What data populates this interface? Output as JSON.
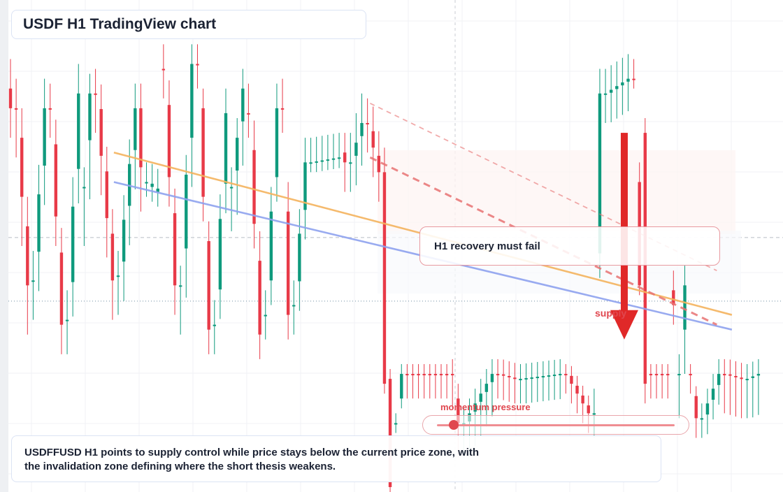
{
  "header": {
    "title": "USDF H1 TradingView chart"
  },
  "annotations": {
    "note": "H1 recovery must fail",
    "supply_label": "supply",
    "momentum_label": "momentum pressure",
    "momentum_level": 0.07
  },
  "caption": {
    "line1": "USDFFUSD H1 points to supply control while price stays below the current price zone, with",
    "line2": "the invalidation zone defining where the short thesis weakens."
  },
  "colors": {
    "up": "#0f9a7d",
    "down": "#e83a48",
    "trend_orange": "#f4b35e",
    "trend_blue": "#8ea2ef",
    "resistance_dashed": "#e87373",
    "arrow": "#e02828"
  },
  "chart_data": {
    "type": "candlestick",
    "interval": "H1",
    "y_direction": "price_down",
    "grid": true,
    "levels": {
      "current_price": 0.612,
      "support": 0.79
    },
    "segments": [
      {
        "dir": "down",
        "count": 1,
        "start": 0.18,
        "end": 0.22,
        "wick_above": 0.06,
        "wick_below": 0.06
      },
      {
        "dir": "down",
        "count": 3,
        "start": 0.22,
        "end": 0.58,
        "wick_above": 0.06,
        "wick_below": 0.1
      },
      {
        "dir": "up",
        "count": 3,
        "start": 0.57,
        "end": 0.22,
        "wick_above": 0.06,
        "wick_below": 0.08
      },
      {
        "dir": "down",
        "count": 3,
        "start": 0.22,
        "end": 0.66,
        "wick_above": 0.05,
        "wick_below": 0.06
      },
      {
        "dir": "up",
        "count": 3,
        "start": 0.65,
        "end": 0.19,
        "wick_above": 0.06,
        "wick_below": 0.07
      },
      {
        "dir": "up",
        "count": 2,
        "start": 0.38,
        "end": 0.19,
        "wick_above": 0.04,
        "wick_below": 0.12
      },
      {
        "dir": "down",
        "count": 4,
        "start": 0.19,
        "end": 0.57,
        "wick_above": 0.05,
        "wick_below": 0.08
      },
      {
        "dir": "up",
        "count": 4,
        "start": 0.56,
        "end": 0.22,
        "wick_above": 0.05,
        "wick_below": 0.08
      },
      {
        "dir": "down",
        "count": 1,
        "start": 0.22,
        "end": 0.34,
        "wick_above": 0.05,
        "wick_below": 0.09
      },
      {
        "dir": "up",
        "count": 3,
        "start": 0.37,
        "end": 0.39,
        "wick_above": 0.04,
        "wick_below": 0.03
      },
      {
        "dir": "down",
        "count": 3,
        "start": 0.14,
        "end": 0.58,
        "wick_above": 0.05,
        "wick_below": 0.06
      },
      {
        "dir": "up",
        "count": 3,
        "start": 0.58,
        "end": 0.13,
        "wick_above": 0.04,
        "wick_below": 0.1
      },
      {
        "dir": "down",
        "count": 3,
        "start": 0.13,
        "end": 0.67,
        "wick_above": 0.04,
        "wick_below": 0.05
      },
      {
        "dir": "up",
        "count": 3,
        "start": 0.66,
        "end": 0.23,
        "wick_above": 0.05,
        "wick_below": 0.06
      },
      {
        "dir": "up",
        "count": 3,
        "start": 0.38,
        "end": 0.18,
        "wick_above": 0.04,
        "wick_below": 0.09
      },
      {
        "dir": "down",
        "count": 3,
        "start": 0.23,
        "end": 0.68,
        "wick_above": 0.06,
        "wick_below": 0.05
      },
      {
        "dir": "up",
        "count": 3,
        "start": 0.64,
        "end": 0.22,
        "wick_above": 0.05,
        "wick_below": 0.05
      },
      {
        "dir": "down",
        "count": 2,
        "start": 0.22,
        "end": 0.64,
        "wick_above": 0.06,
        "wick_below": 0.05
      },
      {
        "dir": "up",
        "count": 3,
        "start": 0.62,
        "end": 0.33,
        "wick_above": 0.05,
        "wick_below": 0.06
      },
      {
        "dir": "up",
        "count": 6,
        "start": 0.33,
        "end": 0.32,
        "wick_above": 0.05,
        "wick_below": 0.02
      },
      {
        "dir": "down",
        "count": 1,
        "start": 0.31,
        "end": 0.33,
        "wick_above": 0.04,
        "wick_below": 0.06
      },
      {
        "dir": "up",
        "count": 3,
        "start": 0.33,
        "end": 0.25,
        "wick_above": 0.06,
        "wick_below": 0.06
      },
      {
        "dir": "down",
        "count": 3,
        "start": 0.25,
        "end": 0.35,
        "wick_above": 0.05,
        "wick_below": 0.06
      },
      {
        "dir": "down",
        "count": 1,
        "start": 0.35,
        "end": 0.78,
        "wick_above": 0.05,
        "wick_below": 0.02
      },
      {
        "dir": "down",
        "count": 1,
        "start": 0.77,
        "end": 0.99,
        "wick_above": 0.02,
        "wick_below": 0.01
      },
      {
        "dir": "up",
        "count": 2,
        "start": 0.86,
        "end": 0.76,
        "wick_above": 0.02,
        "wick_below": 0.02
      },
      {
        "dir": "down",
        "count": 8,
        "start": 0.76,
        "end": 0.76,
        "wick_above": 0.02,
        "wick_below": 0.05
      },
      {
        "dir": "down",
        "count": 2,
        "start": 0.76,
        "end": 0.86,
        "wick_above": 0.03,
        "wick_below": 0.07
      },
      {
        "dir": "up",
        "count": 6,
        "start": 0.86,
        "end": 0.76,
        "wick_above": 0.03,
        "wick_below": 0.07
      },
      {
        "dir": "down",
        "count": 4,
        "start": 0.76,
        "end": 0.77,
        "wick_above": 0.03,
        "wick_below": 0.05
      },
      {
        "dir": "up",
        "count": 8,
        "start": 0.77,
        "end": 0.76,
        "wick_above": 0.03,
        "wick_below": 0.05
      },
      {
        "dir": "down",
        "count": 5,
        "start": 0.76,
        "end": 0.84,
        "wick_above": 0.02,
        "wick_below": 0.04
      },
      {
        "dir": "up",
        "count": 2,
        "start": 0.84,
        "end": 0.19,
        "wick_above": 0.05,
        "wick_below": 0.05
      },
      {
        "dir": "up",
        "count": 5,
        "start": 0.19,
        "end": 0.16,
        "wick_above": 0.05,
        "wick_below": 0.06
      },
      {
        "dir": "down",
        "count": 2,
        "start": 0.16,
        "end": 0.58,
        "wick_above": 0.04,
        "wick_below": 0.02
      },
      {
        "dir": "down",
        "count": 1,
        "start": 0.27,
        "end": 0.78,
        "wick_above": 0.03,
        "wick_below": 0.04
      },
      {
        "dir": "down",
        "count": 4,
        "start": 0.76,
        "end": 0.76,
        "wick_above": 0.02,
        "wick_below": 0.05
      },
      {
        "dir": "down",
        "count": 1,
        "start": 0.59,
        "end": 0.62,
        "wick_above": 0.04,
        "wick_below": 0.04
      },
      {
        "dir": "up",
        "count": 2,
        "start": 0.76,
        "end": 0.58,
        "wick_above": 0.04,
        "wick_below": 0.09
      },
      {
        "dir": "down",
        "count": 2,
        "start": 0.76,
        "end": 0.85,
        "wick_above": 0.02,
        "wick_below": 0.04
      },
      {
        "dir": "up",
        "count": 4,
        "start": 0.85,
        "end": 0.76,
        "wick_above": 0.03,
        "wick_below": 0.04
      },
      {
        "dir": "down",
        "count": 4,
        "start": 0.76,
        "end": 0.77,
        "wick_above": 0.03,
        "wick_below": 0.08
      },
      {
        "dir": "up",
        "count": 3,
        "start": 0.77,
        "end": 0.76,
        "wick_above": 0.03,
        "wick_below": 0.08
      }
    ],
    "trendlines": [
      {
        "role": "orange",
        "from": [
          0.14,
          0.31
        ],
        "to": [
          0.96,
          0.64
        ]
      },
      {
        "role": "blue",
        "from": [
          0.14,
          0.37
        ],
        "to": [
          0.96,
          0.67
        ]
      },
      {
        "role": "dashed_thick",
        "from": [
          0.48,
          0.32
        ],
        "to": [
          0.94,
          0.66
        ]
      },
      {
        "role": "dashed_thin",
        "from": [
          0.48,
          0.21
        ],
        "to": [
          0.94,
          0.55
        ]
      }
    ],
    "arrow": {
      "x": 0.82,
      "from": 0.27,
      "to": 0.69
    }
  }
}
